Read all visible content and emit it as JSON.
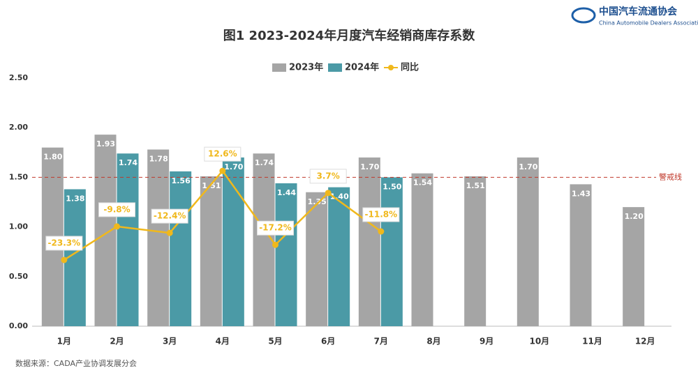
{
  "chart_data": {
    "type": "bar",
    "title": "图1  2023-2024年月度汽车经销商库存系数",
    "logo": {
      "name": "中国汽车流通协会",
      "subtitle": "China Automobile Dealers Association"
    },
    "source": "数据来源：CADA产业协调发展分会",
    "categories": [
      "1月",
      "2月",
      "3月",
      "4月",
      "5月",
      "6月",
      "7月",
      "8月",
      "9月",
      "10月",
      "11月",
      "12月"
    ],
    "series": [
      {
        "name": "2023年",
        "color": "#a5a5a5",
        "type": "bar",
        "values": [
          1.8,
          1.93,
          1.78,
          1.51,
          1.74,
          1.35,
          1.7,
          1.54,
          1.51,
          1.7,
          1.43,
          1.2
        ],
        "value_labels": [
          "1.80",
          "1.93",
          "1.78",
          "1.51",
          "1.74",
          "1.35",
          "1.70",
          "1.54",
          "1.51",
          "1.70",
          "1.43",
          "1.20"
        ]
      },
      {
        "name": "2024年",
        "color": "#4b9aa6",
        "type": "bar",
        "values": [
          1.38,
          1.74,
          1.56,
          1.7,
          1.44,
          1.4,
          1.5,
          null,
          null,
          null,
          null,
          null
        ],
        "value_labels": [
          "1.38",
          "1.74",
          "1.56",
          "1.70",
          "1.44",
          "1.40",
          "1.50",
          null,
          null,
          null,
          null,
          null
        ]
      },
      {
        "name": "同比",
        "color": "#f0b81c",
        "type": "line",
        "axis": "y2",
        "values": [
          -23.3,
          -9.8,
          -12.4,
          12.6,
          -17.2,
          3.7,
          -11.8,
          null,
          null,
          null,
          null,
          null
        ],
        "value_labels": [
          "-23.3%",
          "-9.8%",
          "-12.4%",
          "12.6%",
          "-17.2%",
          "3.7%",
          "-11.8%",
          null,
          null,
          null,
          null,
          null
        ]
      }
    ],
    "ylim": [
      0,
      2.5
    ],
    "yticks": [
      {
        "value": 0,
        "label": "0.00"
      },
      {
        "value": 0.5,
        "label": "0.50"
      },
      {
        "value": 1,
        "label": "1.00"
      },
      {
        "value": 1.5,
        "label": "1.50"
      },
      {
        "value": 2,
        "label": "2.00"
      },
      {
        "value": 2.5,
        "label": "2.50"
      }
    ],
    "y2lim": [
      -50,
      50
    ],
    "reference_line": {
      "value": 1.5,
      "label": "警戒线",
      "color": "#c0392b"
    },
    "grid": false,
    "legend": "top"
  }
}
